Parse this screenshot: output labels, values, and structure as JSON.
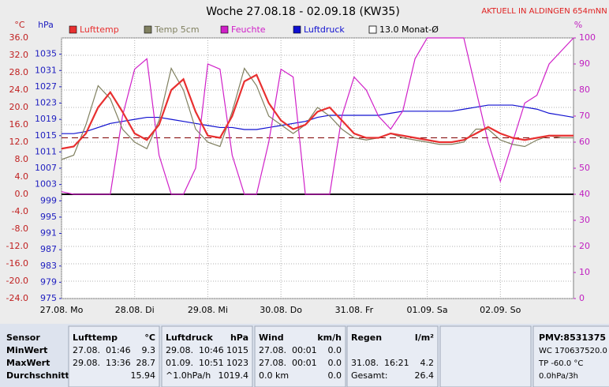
{
  "header": {
    "station": "AKTUELL IN ALDINGEN 654mNN"
  },
  "chart_data": {
    "type": "line",
    "title": "Woche 27.08.18 - 02.09.18 (KW35)",
    "y_label": "°C",
    "y2_label": "hPa",
    "y3_label": "%",
    "categories": [
      "27.08. Mo",
      null,
      null,
      null,
      null,
      null,
      "28.08. Di",
      null,
      null,
      null,
      null,
      null,
      "29.08. Mi",
      null,
      null,
      null,
      null,
      null,
      "30.08. Do",
      null,
      null,
      null,
      null,
      null,
      "31.08. Fr",
      null,
      null,
      null,
      null,
      null,
      "01.09. Sa",
      null,
      null,
      null,
      null,
      null,
      "02.09. So",
      null,
      null,
      null,
      null,
      null,
      null
    ],
    "series": [
      {
        "name": "Lufttemp",
        "color": "#e83030",
        "axis": "y",
        "width": 2.2,
        "values": [
          10.5,
          11,
          14,
          20,
          23.5,
          19,
          14,
          12.5,
          16,
          24,
          26.5,
          19,
          13.5,
          13,
          18,
          26,
          27.5,
          21,
          17,
          15,
          16,
          19,
          20,
          17,
          14,
          13,
          13,
          14,
          13.5,
          13,
          12.5,
          12,
          12,
          12.5,
          14,
          15.5,
          14,
          13,
          12.5,
          13,
          13.5,
          13.5,
          13.5
        ]
      },
      {
        "name": "Temp 5cm",
        "color": "#808060",
        "axis": "y",
        "width": 1.2,
        "values": [
          8,
          9,
          16,
          25,
          22,
          15,
          12,
          10.5,
          17,
          29,
          24,
          15,
          12,
          11,
          19,
          29,
          25,
          18,
          16,
          14,
          16,
          20,
          18,
          15,
          13,
          12.5,
          13,
          14,
          13,
          12.5,
          12,
          11.5,
          11.5,
          12,
          15,
          15,
          12.5,
          11.5,
          11,
          12.5,
          13.5,
          13,
          13
        ]
      },
      {
        "name": "Feuchte",
        "color": "#d020c8",
        "axis": "y3",
        "width": 1.2,
        "values": [
          41,
          40,
          40,
          40,
          40,
          70,
          88,
          92,
          55,
          40,
          40,
          50,
          90,
          88,
          55,
          40,
          40,
          60,
          88,
          85,
          40,
          40,
          40,
          70,
          85,
          80,
          70,
          65,
          72,
          92,
          100,
          100,
          100,
          100,
          80,
          60,
          45,
          60,
          75,
          78,
          90,
          95,
          100
        ]
      },
      {
        "name": "Luftdruck",
        "color": "#1010d0",
        "axis": "y2",
        "width": 1.2,
        "values": [
          1015.5,
          1015.5,
          1016,
          1017,
          1018,
          1018.5,
          1019,
          1019.5,
          1019.5,
          1019,
          1018.5,
          1018,
          1017.5,
          1017,
          1017,
          1016.5,
          1016.5,
          1017,
          1017.5,
          1018,
          1018.5,
          1019.5,
          1020,
          1020,
          1020,
          1020,
          1020,
          1020.5,
          1021,
          1021,
          1021,
          1021,
          1021,
          1021.5,
          1022,
          1022.5,
          1022.5,
          1022.5,
          1022,
          1021.5,
          1020.5,
          1020,
          1019.5
        ]
      }
    ],
    "mean_line": {
      "name": "13.0 Monat-Ø",
      "value": 13,
      "color": "#800000"
    },
    "zero_line": {
      "value": 0,
      "color": "#000000"
    },
    "ylim": [
      -24,
      36
    ],
    "yticks": [
      {
        "value": -24,
        "label": "-24.0"
      },
      {
        "value": -20,
        "label": "-20.0"
      },
      {
        "value": -16,
        "label": "-16.0"
      },
      {
        "value": -12,
        "label": "-12.0"
      },
      {
        "value": -8,
        "label": "-8.0"
      },
      {
        "value": -4,
        "label": "-4.0"
      },
      {
        "value": 0,
        "label": "0.0"
      },
      {
        "value": 4,
        "label": "4.0"
      },
      {
        "value": 8,
        "label": "8.0"
      },
      {
        "value": 12,
        "label": "12.0"
      },
      {
        "value": 16,
        "label": "16.0"
      },
      {
        "value": 20,
        "label": "20.0"
      },
      {
        "value": 24,
        "label": "24.0"
      },
      {
        "value": 28,
        "label": "28.0"
      },
      {
        "value": 32,
        "label": "32.0"
      },
      {
        "value": 36,
        "label": "36.0"
      }
    ],
    "y2lim": [
      975,
      1039
    ],
    "y2ticks": [
      975,
      979,
      983,
      987,
      991,
      995,
      999,
      1003,
      1007,
      1011,
      1015,
      1019,
      1023,
      1027,
      1031,
      1035
    ],
    "y3lim": [
      0,
      100
    ],
    "y3ticks": [
      0,
      10,
      20,
      30,
      40,
      50,
      60,
      70,
      80,
      90,
      100
    ],
    "grid": true
  },
  "stats": {
    "row_labels": [
      "Sensor",
      "MinWert",
      "MaxWert",
      "Durchschnitt"
    ],
    "columns": [
      {
        "header": "Lufttemp",
        "unit": "°C",
        "rows": [
          [
            "27.08.  01:46",
            "9.3"
          ],
          [
            "29.08.  13:36",
            "28.7"
          ],
          [
            null,
            "15.94"
          ]
        ]
      },
      {
        "header": "Luftdruck",
        "unit": "hPa",
        "rows": [
          [
            "29.08.  10:46",
            "1015"
          ],
          [
            "01.09.  10:51",
            "1023"
          ],
          [
            "^1.0hPa/h",
            "1019.4"
          ]
        ]
      },
      {
        "header": "Wind",
        "unit": "km/h",
        "rows": [
          [
            "27.08.  00:01",
            "0.0"
          ],
          [
            "27.08.  00:01",
            "0.0"
          ],
          [
            "0.0 km",
            "0.0"
          ]
        ]
      },
      {
        "header": "Regen",
        "unit": "l/m²",
        "rows": [
          [
            null,
            null
          ],
          [
            "31.08.  16:21",
            "4.2"
          ],
          [
            "Gesamt:",
            "26.4"
          ]
        ]
      }
    ],
    "extra": [
      "PMV:8531375",
      "WC 170637520.0",
      "TP -60.0 °C",
      "0.0hPa/3h"
    ]
  }
}
